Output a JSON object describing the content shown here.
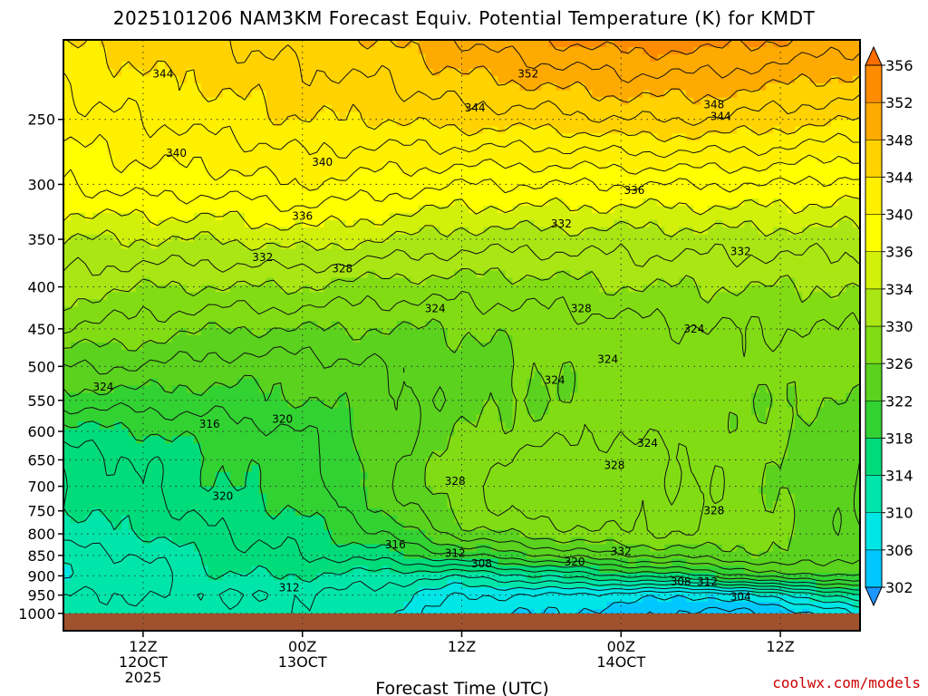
{
  "title": "2025101206 NAM3KM Forecast Equiv. Potential Temperature (K) for KMDT",
  "credit": "coolwx.com/models",
  "chart_data": {
    "type": "heatmap",
    "title": "2025101206 NAM3KM Forecast Equiv. Potential Temperature (K) for KMDT",
    "xlabel": "Forecast Time (UTC)",
    "ylabel": "",
    "x_range_hours": [
      0,
      60
    ],
    "x_ticks": [
      {
        "hour": 6,
        "label": "12Z",
        "sub": "12OCT",
        "sub2": "2025"
      },
      {
        "hour": 18,
        "label": "00Z",
        "sub": "13OCT",
        "sub2": ""
      },
      {
        "hour": 30,
        "label": "12Z",
        "sub": "",
        "sub2": ""
      },
      {
        "hour": 42,
        "label": "00Z",
        "sub": "14OCT",
        "sub2": ""
      },
      {
        "hour": 54,
        "label": "12Z",
        "sub": "",
        "sub2": ""
      }
    ],
    "y_scale": "log-pressure",
    "y_range_hpa": [
      1050,
      200
    ],
    "y_ticks": [
      250,
      300,
      350,
      400,
      450,
      500,
      550,
      600,
      650,
      700,
      750,
      800,
      850,
      900,
      950,
      1000
    ],
    "grid": true,
    "colorbar": {
      "unit": "K",
      "levels": [
        302,
        306,
        310,
        314,
        318,
        322,
        326,
        330,
        334,
        336,
        340,
        344,
        348,
        352,
        356
      ],
      "colors": [
        "#1e96ff",
        "#00c8ff",
        "#00e6e6",
        "#00e6aa",
        "#00dc7a",
        "#32d232",
        "#5ad21e",
        "#82dc14",
        "#aae614",
        "#d2f00a",
        "#ffff00",
        "#fff000",
        "#ffd200",
        "#ffaa00",
        "#ff8c00",
        "#ff6e00"
      ],
      "extend": "both"
    },
    "profiles": {
      "pressure_hpa": [
        1000,
        950,
        900,
        850,
        800,
        750,
        700,
        650,
        600,
        550,
        500,
        450,
        400,
        350,
        300,
        250,
        200
      ],
      "series": [
        {
          "hour": 0,
          "theta_e": [
            313,
            312,
            310,
            311,
            313,
            314,
            314,
            315,
            317,
            321,
            324,
            328,
            331,
            334,
            338,
            341,
            344
          ]
        },
        {
          "hour": 6,
          "theta_e": [
            313,
            312,
            311,
            312,
            314,
            315,
            316,
            316,
            318,
            321,
            324,
            327,
            330,
            334,
            339,
            342,
            345
          ]
        },
        {
          "hour": 12,
          "theta_e": [
            313,
            312,
            314,
            315,
            316,
            317,
            318,
            318,
            319,
            321,
            323,
            326,
            330,
            334,
            339,
            343,
            346
          ]
        },
        {
          "hour": 18,
          "theta_e": [
            312,
            312,
            314,
            316,
            317,
            318,
            319,
            319,
            320,
            322,
            323,
            326,
            330,
            335,
            340,
            344,
            347
          ]
        },
        {
          "hour": 24,
          "theta_e": [
            311,
            311,
            313,
            317,
            320,
            322,
            323,
            323,
            323,
            323,
            324,
            326,
            329,
            334,
            339,
            344,
            348
          ]
        },
        {
          "hour": 30,
          "theta_e": [
            306,
            308,
            312,
            320,
            325,
            327,
            328,
            327,
            326,
            325,
            325,
            326,
            329,
            333,
            338,
            345,
            350
          ]
        },
        {
          "hour": 36,
          "theta_e": [
            306,
            308,
            314,
            322,
            327,
            329,
            329,
            329,
            327,
            326,
            326,
            327,
            329,
            333,
            338,
            345,
            352
          ]
        },
        {
          "hour": 42,
          "theta_e": [
            305,
            307,
            316,
            324,
            328,
            329,
            329,
            329,
            328,
            327,
            327,
            327,
            330,
            333,
            338,
            346,
            353
          ]
        },
        {
          "hour": 48,
          "theta_e": [
            303,
            306,
            318,
            325,
            328,
            328,
            328,
            328,
            327,
            327,
            327,
            328,
            330,
            333,
            338,
            346,
            353
          ]
        },
        {
          "hour": 54,
          "theta_e": [
            304,
            309,
            322,
            326,
            326,
            326,
            326,
            326,
            326,
            326,
            327,
            328,
            330,
            333,
            338,
            345,
            352
          ]
        },
        {
          "hour": 60,
          "theta_e": [
            308,
            314,
            322,
            324,
            324,
            324,
            324,
            324,
            325,
            326,
            327,
            328,
            330,
            333,
            337,
            344,
            351
          ]
        }
      ]
    },
    "contour_labels": [
      {
        "hour": 7.5,
        "hpa": 220,
        "text": "344"
      },
      {
        "hour": 35,
        "hpa": 220,
        "text": "352"
      },
      {
        "hour": 49,
        "hpa": 240,
        "text": "348"
      },
      {
        "hour": 49.5,
        "hpa": 248,
        "text": "344"
      },
      {
        "hour": 31,
        "hpa": 242,
        "text": "344"
      },
      {
        "hour": 8.5,
        "hpa": 275,
        "text": "340"
      },
      {
        "hour": 19.5,
        "hpa": 282,
        "text": "340"
      },
      {
        "hour": 43,
        "hpa": 305,
        "text": "336"
      },
      {
        "hour": 18,
        "hpa": 328,
        "text": "336"
      },
      {
        "hour": 37.5,
        "hpa": 335,
        "text": "332"
      },
      {
        "hour": 51,
        "hpa": 362,
        "text": "332"
      },
      {
        "hour": 15,
        "hpa": 368,
        "text": "332"
      },
      {
        "hour": 21,
        "hpa": 380,
        "text": "328"
      },
      {
        "hour": 39,
        "hpa": 425,
        "text": "328"
      },
      {
        "hour": 28,
        "hpa": 425,
        "text": "324"
      },
      {
        "hour": 47.5,
        "hpa": 450,
        "text": "324"
      },
      {
        "hour": 41,
        "hpa": 490,
        "text": "324"
      },
      {
        "hour": 37,
        "hpa": 520,
        "text": "324"
      },
      {
        "hour": 3,
        "hpa": 530,
        "text": "324"
      },
      {
        "hour": 16.5,
        "hpa": 580,
        "text": "320"
      },
      {
        "hour": 11,
        "hpa": 588,
        "text": "316"
      },
      {
        "hour": 44,
        "hpa": 620,
        "text": "324"
      },
      {
        "hour": 41.5,
        "hpa": 660,
        "text": "328"
      },
      {
        "hour": 29.5,
        "hpa": 690,
        "text": "328"
      },
      {
        "hour": 12,
        "hpa": 720,
        "text": "320"
      },
      {
        "hour": 49,
        "hpa": 750,
        "text": "328"
      },
      {
        "hour": 25,
        "hpa": 825,
        "text": "316"
      },
      {
        "hour": 29.5,
        "hpa": 845,
        "text": "312"
      },
      {
        "hour": 42,
        "hpa": 840,
        "text": "332"
      },
      {
        "hour": 31.5,
        "hpa": 870,
        "text": "308"
      },
      {
        "hour": 38.5,
        "hpa": 865,
        "text": "320"
      },
      {
        "hour": 17,
        "hpa": 930,
        "text": "312"
      },
      {
        "hour": 46.5,
        "hpa": 915,
        "text": "308"
      },
      {
        "hour": 48.5,
        "hpa": 915,
        "text": "312"
      },
      {
        "hour": 51,
        "hpa": 955,
        "text": "304"
      }
    ]
  }
}
